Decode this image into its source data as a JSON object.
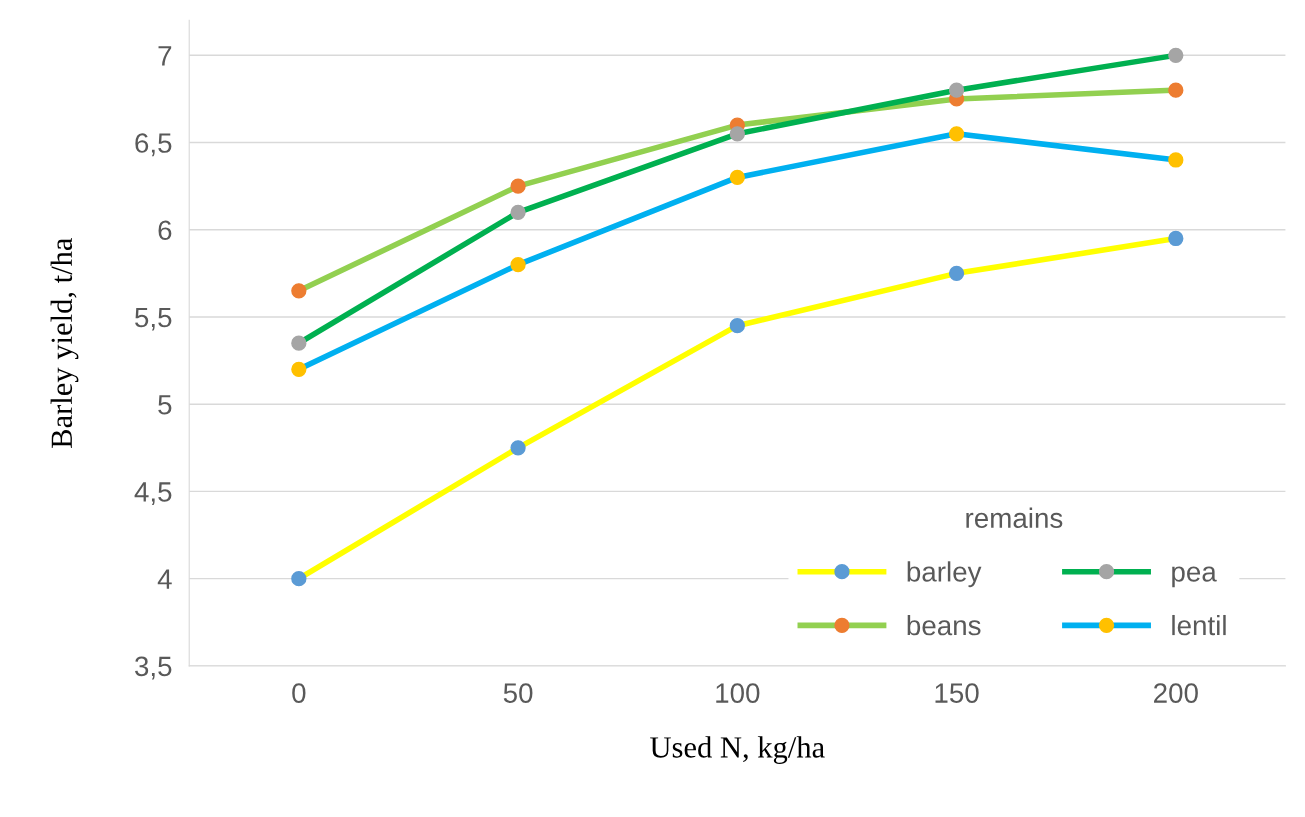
{
  "chart_data": {
    "type": "line",
    "xlabel": "Used N, kg/ha",
    "ylabel": "Barley yield, t/ha",
    "legend_title": "remains",
    "categories": [
      "0",
      "50",
      "100",
      "150",
      "200"
    ],
    "series": [
      {
        "name": "barley",
        "color": "#ffff00",
        "colors": [
          "#5b9bd5",
          "#5b9bd5",
          "#5b9bd5",
          "#5b9bd5",
          "#5b9bd5"
        ],
        "values": [
          4,
          4.75,
          5.45,
          5.75,
          5.95
        ]
      },
      {
        "name": "beans",
        "color": "#92d050",
        "colors": [
          "#ed7d31",
          "#ed7d31",
          "#ed7d31",
          "#ed7d31",
          "#ed7d31"
        ],
        "values": [
          5.65,
          6.25,
          6.6,
          6.75,
          6.8
        ]
      },
      {
        "name": "pea",
        "color": "#00b050",
        "colors": [
          "#a5a5a5",
          "#a5a5a5",
          "#a5a5a5",
          "#a5a5a5",
          "#a5a5a5"
        ],
        "values": [
          5.35,
          6.1,
          6.55,
          6.8,
          7.0
        ]
      },
      {
        "name": "lentil",
        "color": "#00b0f0",
        "colors": [
          "#ffc000",
          "#ffc000",
          "#ffc000",
          "#ffc000",
          "#ffc000"
        ],
        "values": [
          5.2,
          5.8,
          6.3,
          6.55,
          6.4
        ]
      }
    ],
    "ylim": [
      3.5,
      7.2
    ],
    "yticks": [
      {
        "value": 3.5,
        "label": "3,5"
      },
      4,
      {
        "value": 4.5,
        "label": "4,5"
      },
      5,
      {
        "value": 5.5,
        "label": "5,5"
      },
      6,
      {
        "value": 6.5,
        "label": "6,5"
      },
      7
    ],
    "grid": "y",
    "legend": "bottom right",
    "marker": "circle",
    "line_style": "solid"
  }
}
